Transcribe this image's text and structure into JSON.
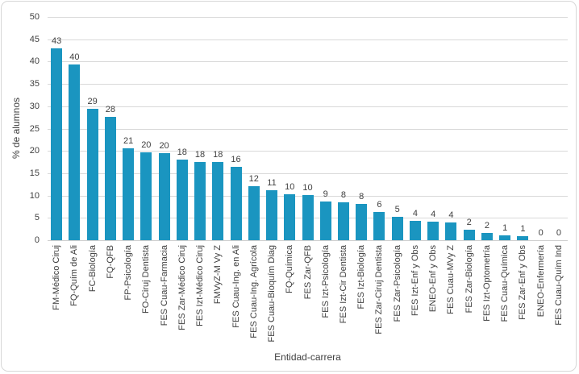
{
  "chart_data": {
    "type": "bar",
    "title": "",
    "xlabel": "Entidad-carrera",
    "ylabel": "% de alumnos",
    "ylim": [
      0,
      50
    ],
    "yticks": [
      0,
      5,
      10,
      15,
      20,
      25,
      30,
      35,
      40,
      45,
      50
    ],
    "grid": "horizontal",
    "legend": "none",
    "bar_color": "#1a95c0",
    "gridline_color": "#d9d9d9",
    "text_color": "#404040",
    "categories": [
      "FM-Médico Ciruj",
      "FQ-Quím de Ali",
      "FC-Biología",
      "FQ-QFB",
      "FP-Psicología",
      "FO-Ciruj Dentista",
      "FES Cuau-Farmacia",
      "FES Zar-Médico Ciruj",
      "FES Izt-Médico Ciruj",
      "FMVyZ-M Vy Z",
      "FES Cuau-Ing. en Ali",
      "FES Cuau-Ing. Agrícola",
      "FES Cuau-Bioquím Diag",
      "FQ-Química",
      "FES Zar-QFB",
      "FES Izt-Psicología",
      "FES Izt-Cir Dentista",
      "FES Izt-Biología",
      "FES Zar-Ciruj Dentista",
      "FES Zar-Psicología",
      "FES Izt-Enf y Obs",
      "ENEO-Enf y Obs",
      "FES Cuau-MVy Z",
      "FES Zar-Biología",
      "FES Izt-Optometría",
      "FES Cuau-Química",
      "FES Zar-Enf y Obs",
      "ENEO-Enfermería",
      "FES Cuau-Quím Ind"
    ],
    "values": [
      43,
      40,
      29,
      28,
      21,
      20,
      20,
      18,
      18,
      18,
      16,
      12,
      11,
      10,
      10,
      9,
      8,
      8,
      6,
      5,
      4,
      4,
      4,
      2,
      2,
      1,
      1,
      0,
      0
    ],
    "precise_values": [
      43,
      39.4,
      29.4,
      27.6,
      20.6,
      19.7,
      19.5,
      18.0,
      17.5,
      17.5,
      16.4,
      12.1,
      11.2,
      10.2,
      10.1,
      8.6,
      8.4,
      8.2,
      6.4,
      5.2,
      4.4,
      4.2,
      4.0,
      2.3,
      1.7,
      1.0,
      0.9,
      0,
      0
    ]
  }
}
